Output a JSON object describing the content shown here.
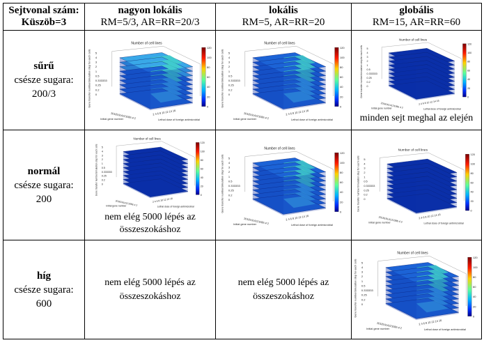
{
  "header": {
    "corner_line1": "Sejtvonal szám:",
    "corner_line2": "Küszöb=3",
    "cols": [
      {
        "title": "nagyon lokális",
        "params": "RM=5/3, AR=RR=20/3"
      },
      {
        "title": "lokális",
        "params": "RM=5, AR=RR=20"
      },
      {
        "title": "globális",
        "params": "RM=15, AR=RR=60"
      }
    ]
  },
  "rows": [
    {
      "name": "sűrű",
      "radius_label": "csésze sugara:",
      "radius_value": "200/3"
    },
    {
      "name": "normál",
      "radius_label": "csésze sugara:",
      "radius_value": "200"
    },
    {
      "name": "híg",
      "radius_label": "csésze sugara:",
      "radius_value": "600"
    }
  ],
  "notes": {
    "all_die": "minden sejt meghal az elején",
    "not_enough_line1": "nem elég 5000 lépés az",
    "not_enough_line2": "összeszokáshoz"
  },
  "plot_text": {
    "title": "Number of cell lines",
    "zlabel": "Gene transfer number/simulation step for each cells",
    "xlabel": "Initial gene number",
    "ylabel": "Lethal dose of foreign antimicrobial",
    "z_ticks": [
      "5",
      "4",
      "3",
      "2",
      "1",
      "0.5",
      "0.333333",
      "0.25",
      "0.2",
      "0"
    ],
    "x_ticks_text": "20181614121086 4 2",
    "y_ticks_text": "2 4 6 8 10 12 14 16",
    "colorbar_ticks": [
      "120",
      "100",
      "80",
      "60",
      "40",
      "20",
      "0"
    ]
  },
  "colors": {
    "border": "#000000",
    "slab_dark": "#0a2fa8",
    "slab_mid": "#1c63d6",
    "slab_light": "#39a8e8",
    "hot": "#43d6c7"
  }
}
